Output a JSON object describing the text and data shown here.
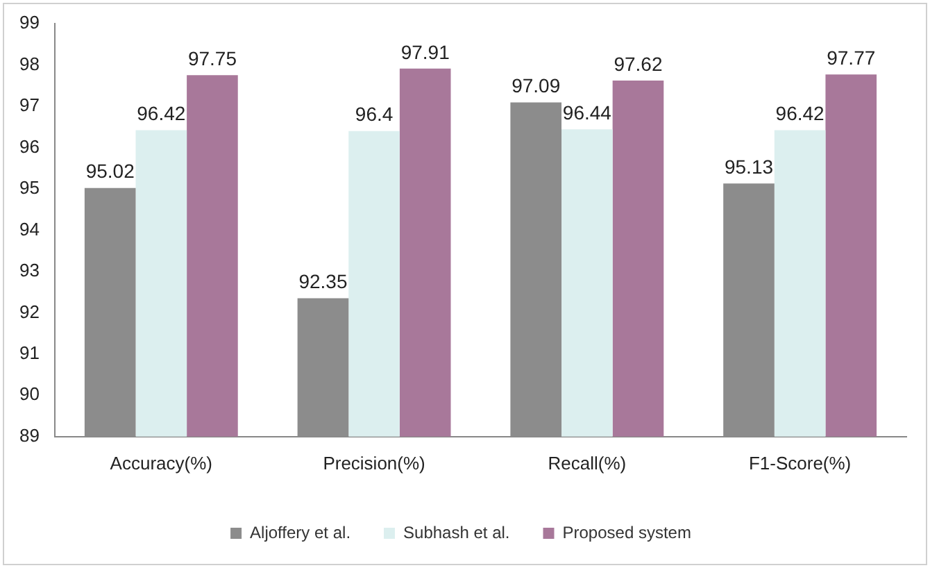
{
  "chart_data": {
    "type": "bar",
    "categories": [
      "Accuracy(%)",
      "Precision(%)",
      "Recall(%)",
      "F1-Score(%)"
    ],
    "series": [
      {
        "name": "Aljoffery et al.",
        "color": "#8c8c8c",
        "values": [
          95.02,
          92.35,
          97.09,
          95.13
        ]
      },
      {
        "name": "Subhash et al.",
        "color": "#dcefef",
        "values": [
          96.42,
          96.4,
          96.44,
          96.42
        ]
      },
      {
        "name": "Proposed system",
        "color": "#a8789a",
        "values": [
          97.75,
          97.91,
          97.62,
          97.77
        ]
      }
    ],
    "ylim": [
      89,
      99
    ],
    "yticks": [
      89,
      90,
      91,
      92,
      93,
      94,
      95,
      96,
      97,
      98,
      99
    ],
    "grid": false,
    "legend": "bottom",
    "data_labels": true
  }
}
